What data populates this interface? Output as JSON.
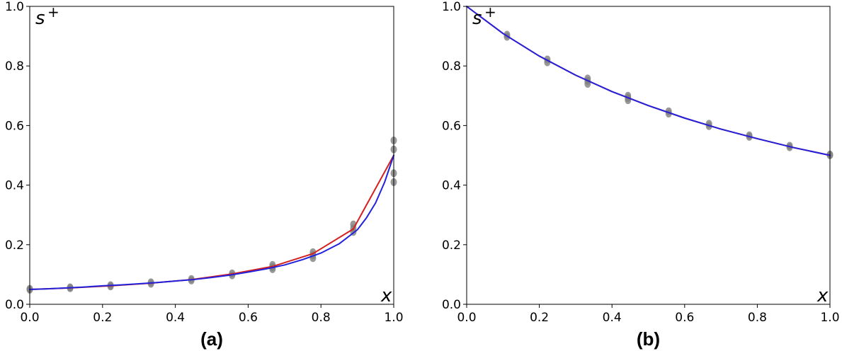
{
  "chart_data": [
    {
      "type": "scatter",
      "panel_label": "(a)",
      "xlabel": "x",
      "ylabel": "s",
      "ylabel_sup": "+",
      "xlim": [
        0,
        1
      ],
      "ylim": [
        0,
        1
      ],
      "x_ticks": [
        "0.0",
        "0.2",
        "0.4",
        "0.6",
        "0.8",
        "1.0"
      ],
      "y_ticks": [
        "0.0",
        "0.2",
        "0.4",
        "0.6",
        "0.8",
        "1.0"
      ],
      "grid": false,
      "scatter_color": "#808080",
      "points": [
        [
          0.0,
          0.049
        ],
        [
          0.0,
          0.052
        ],
        [
          0.111,
          0.054
        ],
        [
          0.111,
          0.057
        ],
        [
          0.222,
          0.06
        ],
        [
          0.222,
          0.064
        ],
        [
          0.333,
          0.069
        ],
        [
          0.333,
          0.074
        ],
        [
          0.444,
          0.08
        ],
        [
          0.444,
          0.085
        ],
        [
          0.556,
          0.097
        ],
        [
          0.556,
          0.104
        ],
        [
          0.667,
          0.118
        ],
        [
          0.667,
          0.125
        ],
        [
          0.667,
          0.132
        ],
        [
          0.778,
          0.155
        ],
        [
          0.778,
          0.165
        ],
        [
          0.778,
          0.175
        ],
        [
          0.889,
          0.243
        ],
        [
          0.889,
          0.255
        ],
        [
          0.889,
          0.268
        ],
        [
          1.0,
          0.41
        ],
        [
          1.0,
          0.44
        ],
        [
          1.0,
          0.52
        ],
        [
          1.0,
          0.55
        ]
      ],
      "series": [
        {
          "color": "#d62020",
          "x": [
            0.0,
            0.111,
            0.222,
            0.333,
            0.444,
            0.556,
            0.667,
            0.778,
            0.889,
            1.0
          ],
          "y": [
            0.05,
            0.055,
            0.062,
            0.071,
            0.083,
            0.102,
            0.127,
            0.17,
            0.253,
            0.5
          ]
        },
        {
          "color": "#2222dd",
          "x": [
            0.0,
            0.05,
            0.1,
            0.15,
            0.2,
            0.25,
            0.3,
            0.35,
            0.4,
            0.45,
            0.5,
            0.55,
            0.6,
            0.65,
            0.7,
            0.75,
            0.8,
            0.85,
            0.9,
            0.925,
            0.95,
            0.975,
            1.0
          ],
          "y": [
            0.05,
            0.052,
            0.055,
            0.058,
            0.062,
            0.065,
            0.069,
            0.073,
            0.078,
            0.083,
            0.09,
            0.098,
            0.108,
            0.119,
            0.132,
            0.15,
            0.172,
            0.203,
            0.25,
            0.29,
            0.34,
            0.41,
            0.5
          ]
        }
      ]
    },
    {
      "type": "scatter",
      "panel_label": "(b)",
      "xlabel": "x",
      "ylabel": "s",
      "ylabel_sup": "+",
      "xlim": [
        0,
        1
      ],
      "ylim": [
        0,
        1
      ],
      "x_ticks": [
        "0.0",
        "0.2",
        "0.4",
        "0.6",
        "0.8",
        "1.0"
      ],
      "y_ticks": [
        "0.0",
        "0.2",
        "0.4",
        "0.6",
        "0.8",
        "1.0"
      ],
      "grid": false,
      "scatter_color": "#808080",
      "points": [
        [
          0.111,
          0.898
        ],
        [
          0.111,
          0.905
        ],
        [
          0.222,
          0.812
        ],
        [
          0.222,
          0.822
        ],
        [
          0.333,
          0.74
        ],
        [
          0.333,
          0.75
        ],
        [
          0.333,
          0.758
        ],
        [
          0.444,
          0.685
        ],
        [
          0.444,
          0.693
        ],
        [
          0.444,
          0.7
        ],
        [
          0.556,
          0.64
        ],
        [
          0.556,
          0.648
        ],
        [
          0.667,
          0.598
        ],
        [
          0.667,
          0.606
        ],
        [
          0.778,
          0.562
        ],
        [
          0.778,
          0.567
        ],
        [
          0.889,
          0.527
        ],
        [
          0.889,
          0.532
        ],
        [
          1.0,
          0.5
        ],
        [
          1.0,
          0.503
        ]
      ],
      "series": [
        {
          "color": "#d62020",
          "x": [
            0.0,
            0.1,
            0.2,
            0.3,
            0.4,
            0.5,
            0.6,
            0.7,
            0.8,
            0.9,
            1.0
          ],
          "y": [
            1.0,
            0.909,
            0.833,
            0.769,
            0.714,
            0.667,
            0.625,
            0.588,
            0.556,
            0.526,
            0.5
          ]
        },
        {
          "color": "#2222dd",
          "x": [
            0.0,
            0.1,
            0.2,
            0.3,
            0.4,
            0.5,
            0.6,
            0.7,
            0.8,
            0.9,
            1.0
          ],
          "y": [
            1.0,
            0.909,
            0.833,
            0.769,
            0.714,
            0.667,
            0.625,
            0.588,
            0.556,
            0.526,
            0.5
          ]
        }
      ]
    }
  ]
}
